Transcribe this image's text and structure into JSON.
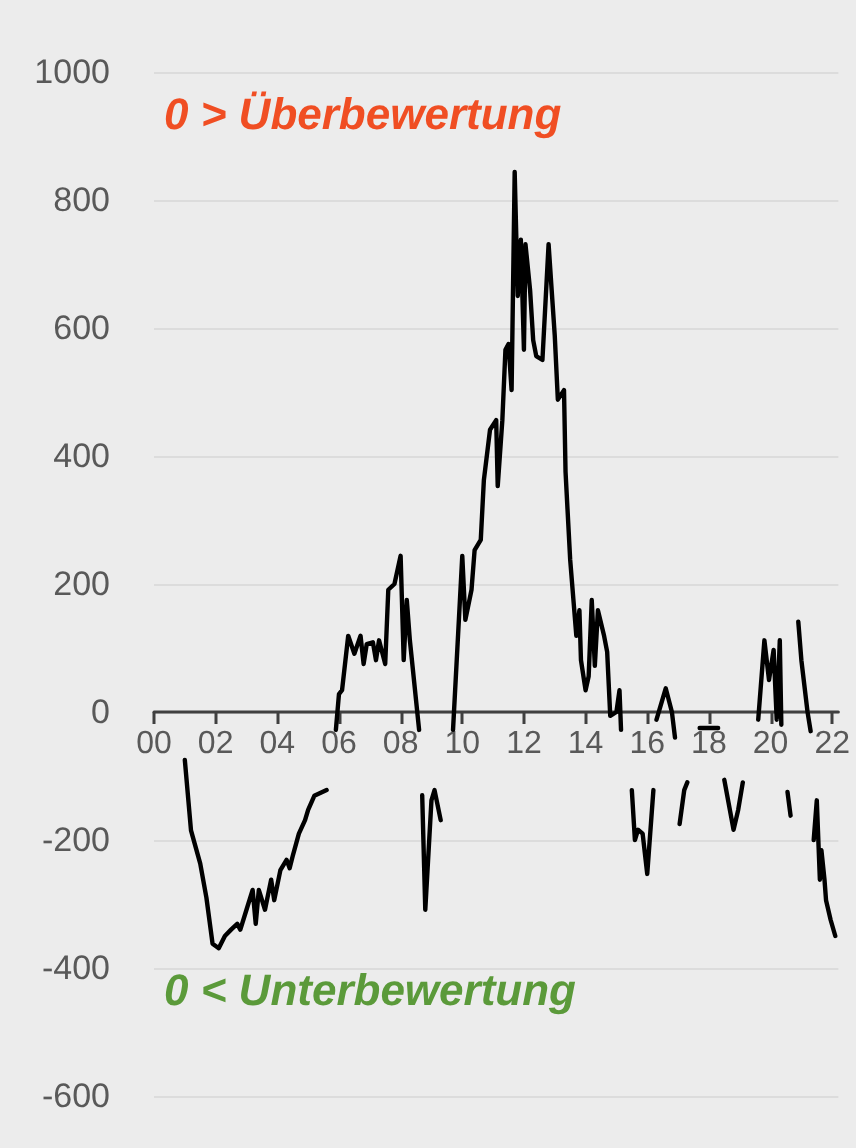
{
  "chart_data": {
    "type": "line",
    "annotations": [
      "0 > Überbewertung",
      "0 < Unterbewertung"
    ],
    "x": [
      2001.0,
      2001.2,
      2001.5,
      2001.7,
      2001.9,
      2002.1,
      2002.3,
      2002.5,
      2002.7,
      2002.8,
      2003.0,
      2003.2,
      2003.3,
      2003.4,
      2003.6,
      2003.8,
      2003.9,
      2004.1,
      2004.3,
      2004.4,
      2004.5,
      2004.7,
      2004.9,
      2005.0,
      2005.2,
      2005.6,
      2005.8,
      2005.9,
      2006.0,
      2006.1,
      2006.3,
      2006.5,
      2006.7,
      2006.8,
      2006.9,
      2007.1,
      2007.2,
      2007.3,
      2007.5,
      2007.6,
      2007.8,
      2008.0,
      2008.1,
      2008.2,
      2008.3,
      2008.6,
      2008.65,
      2008.7,
      2008.8,
      2009.0,
      2009.1,
      2009.3,
      2009.4,
      2009.7,
      2010.0,
      2010.1,
      2010.3,
      2010.4,
      2010.6,
      2010.7,
      2010.9,
      2011.1,
      2011.15,
      2011.3,
      2011.4,
      2011.5,
      2011.6,
      2011.7,
      2011.8,
      2011.9,
      2012.0,
      2012.05,
      2012.2,
      2012.3,
      2012.4,
      2012.6,
      2012.8,
      2012.9,
      2013.0,
      2013.1,
      2013.3,
      2013.35,
      2013.5,
      2013.7,
      2013.8,
      2013.85,
      2014.0,
      2014.1,
      2014.2,
      2014.3,
      2014.4,
      2014.6,
      2014.7,
      2014.8,
      2015.0,
      2015.1,
      2015.15,
      2015.3,
      2015.5,
      2015.6,
      2015.7,
      2015.85,
      2016.0,
      2016.2,
      2016.25,
      2016.3,
      2016.6,
      2016.8,
      2016.9,
      2016.95,
      2017.05,
      2017.2,
      2017.3,
      2017.5,
      2017.7,
      2018.3,
      2018.4,
      2018.5,
      2018.8,
      2018.95,
      2019.1,
      2019.2,
      2019.6,
      2019.8,
      2019.95,
      2020.1,
      2020.2,
      2020.3,
      2020.35,
      2020.4,
      2020.55,
      2020.65,
      2020.7,
      2020.9,
      2021.0,
      2021.2,
      2021.3,
      2021.35,
      2021.4,
      2021.5,
      2021.6,
      2021.65,
      2021.75,
      2021.8,
      2021.95,
      2022.1
    ],
    "series": [
      {
        "color": "#000000",
        "values": [
          -75,
          -185,
          -237,
          -290,
          -362,
          -369,
          -350,
          -340,
          -331,
          -340,
          -309,
          -278,
          -331,
          -278,
          -309,
          -262,
          -294,
          -247,
          -231,
          -244,
          -225,
          -190,
          -169,
          -153,
          -131,
          -122,
          null,
          -28,
          28,
          34,
          119,
          91,
          119,
          75,
          106,
          109,
          81,
          112,
          75,
          191,
          200,
          244,
          81,
          175,
          112,
          -28,
          null,
          -130,
          -309,
          -138,
          -122,
          -169,
          null,
          -28,
          244,
          144,
          191,
          253,
          269,
          362,
          441,
          456,
          353,
          456,
          566,
          575,
          503,
          844,
          650,
          738,
          566,
          731,
          659,
          581,
          556,
          550,
          731,
          659,
          588,
          488,
          503,
          375,
          238,
          119,
          159,
          81,
          34,
          56,
          175,
          72,
          159,
          119,
          94,
          -6,
          0,
          34,
          -28,
          null,
          -122,
          -200,
          -184,
          -190,
          -253,
          -122,
          null,
          -12,
          37,
          0,
          -40,
          null,
          -175,
          -122,
          -110,
          null,
          -25,
          -25,
          null,
          -106,
          -184,
          -153,
          -110,
          null,
          -12,
          112,
          50,
          97,
          -12,
          112,
          -20,
          null,
          -125,
          -162,
          null,
          141,
          81,
          0,
          -30,
          null,
          -200,
          -138,
          -262,
          -216,
          -262,
          -294,
          -325,
          -350
        ]
      }
    ],
    "xlim": [
      2000,
      2022.2
    ],
    "xticks": [
      {
        "value": 2000,
        "label": "00"
      },
      {
        "value": 2002,
        "label": "02"
      },
      {
        "value": 2004,
        "label": "04"
      },
      {
        "value": 2006,
        "label": "06"
      },
      {
        "value": 2008,
        "label": "08"
      },
      {
        "value": 2010,
        "label": "10"
      },
      {
        "value": 2012,
        "label": "12"
      },
      {
        "value": 2014,
        "label": "14"
      },
      {
        "value": 2016,
        "label": "16"
      },
      {
        "value": 2018,
        "label": "18"
      },
      {
        "value": 2020,
        "label": "20"
      },
      {
        "value": 2022,
        "label": "22"
      }
    ],
    "ylim": [
      -600,
      1000
    ],
    "yticks": [
      -600,
      -400,
      -200,
      0,
      200,
      400,
      600,
      800,
      1000
    ],
    "grid": "y",
    "marker": "none",
    "line_style": "solid"
  }
}
